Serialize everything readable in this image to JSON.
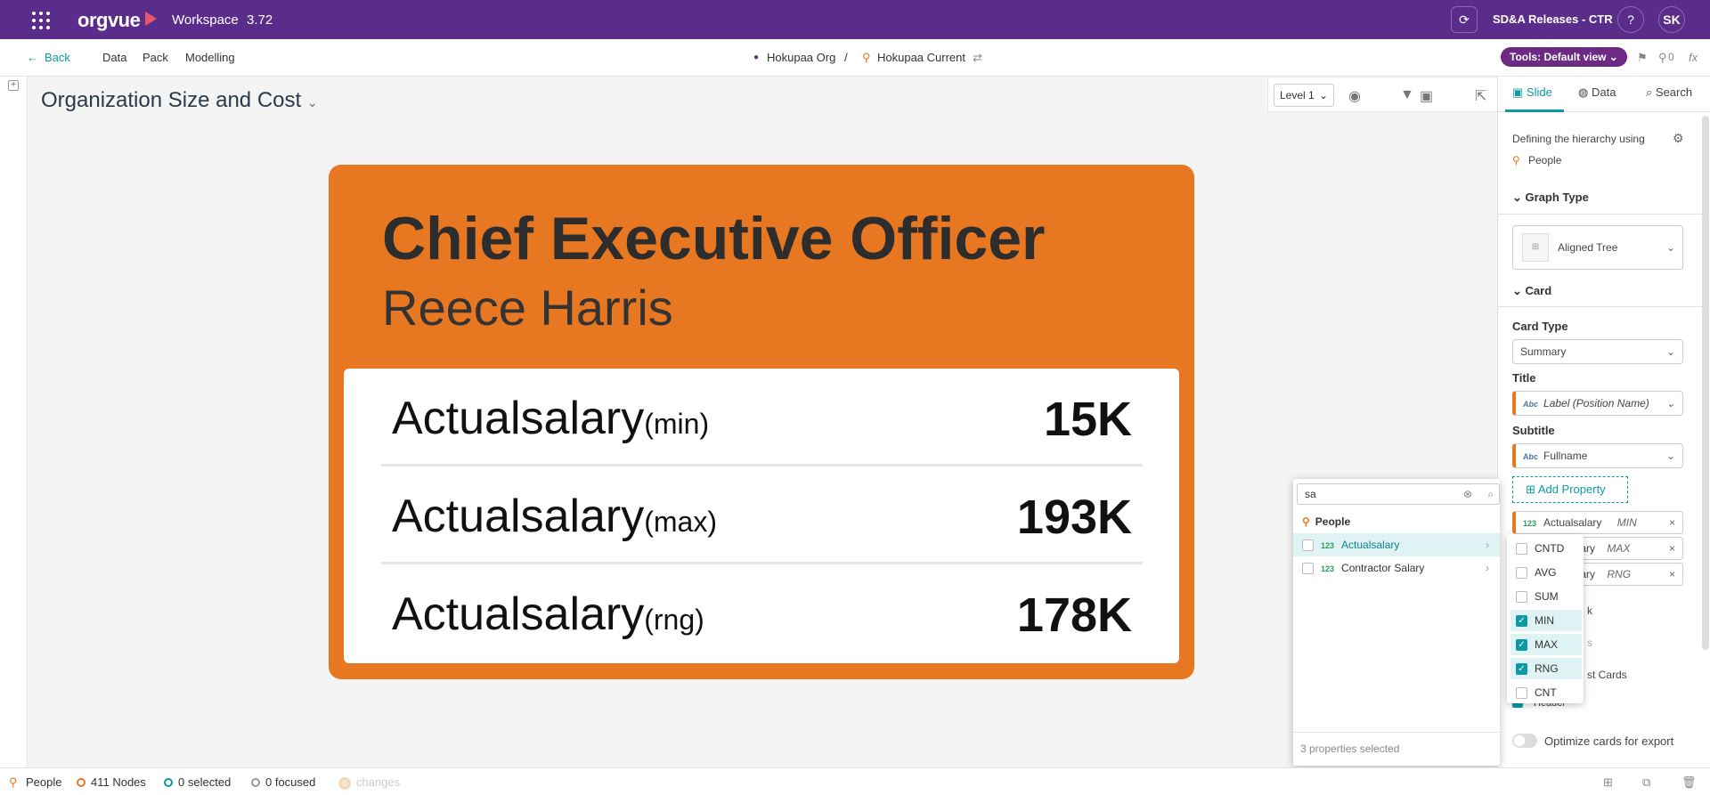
{
  "topbar": {
    "logo": "orgvue",
    "workspace_label": "Workspace",
    "version": "3.72",
    "release": "SD&A Releases - CTR",
    "help": "?",
    "user_initials": "SK"
  },
  "subbar": {
    "back": "Back",
    "nav": [
      "Data",
      "Pack",
      "Modelling"
    ],
    "org": "Hokupaa Org",
    "separator": "/",
    "current": "Hokupaa Current",
    "tools": "Tools: Default view",
    "pin_count": "0"
  },
  "page": {
    "title": "Organization Size and Cost",
    "level": "Level 1"
  },
  "card": {
    "title": "Chief Executive Officer",
    "subtitle": "Reece Harris",
    "rows": [
      {
        "label": "Actualsalary",
        "agg": "(min)",
        "value": "15K"
      },
      {
        "label": "Actualsalary",
        "agg": "(max)",
        "value": "193K"
      },
      {
        "label": "Actualsalary",
        "agg": "(rng)",
        "value": "178K"
      }
    ]
  },
  "rpanel": {
    "tabs": [
      "Slide",
      "Data",
      "Search"
    ],
    "hierarchy_text": "Defining the hierarchy using",
    "hierarchy_entity": "People",
    "graph_type_heading": "Graph Type",
    "graph_type_value": "Aligned Tree",
    "card_heading": "Card",
    "card_type_label": "Card Type",
    "card_type_value": "Summary",
    "title_label": "Title",
    "title_value": "Label (Position Name)",
    "subtitle_label": "Subtitle",
    "subtitle_value": "Fullname",
    "add_property": "Add Property",
    "abc": "Abc",
    "num": "123",
    "props": [
      {
        "name": "Actualsalary",
        "agg": "MIN"
      },
      {
        "name": "alary",
        "agg": "MAX"
      },
      {
        "name": "alary",
        "agg": "RNG"
      }
    ],
    "partial_1": "k",
    "partial_2": "s",
    "partial_3": "st Cards",
    "partial_4": "Header",
    "optimize": "Optimize cards for export"
  },
  "dropdown": {
    "search_value": "sa",
    "entity": "People",
    "items": [
      "Actualsalary",
      "Contractor Salary"
    ],
    "footer": "3 properties selected"
  },
  "agg_menu": {
    "items": [
      {
        "label": "CNTD",
        "checked": false
      },
      {
        "label": "AVG",
        "checked": false
      },
      {
        "label": "SUM",
        "checked": false
      },
      {
        "label": "MIN",
        "checked": true
      },
      {
        "label": "MAX",
        "checked": true
      },
      {
        "label": "RNG",
        "checked": true
      },
      {
        "label": "CNT",
        "checked": false
      }
    ]
  },
  "status": {
    "entity": "People",
    "nodes": "411 Nodes",
    "selected": "0 selected",
    "focused": "0 focused",
    "changes_count": "0",
    "changes": "changes"
  },
  "colors": {
    "brand": "#5b2d8a",
    "card": "#e87722",
    "accent": "#0d9aa4"
  }
}
